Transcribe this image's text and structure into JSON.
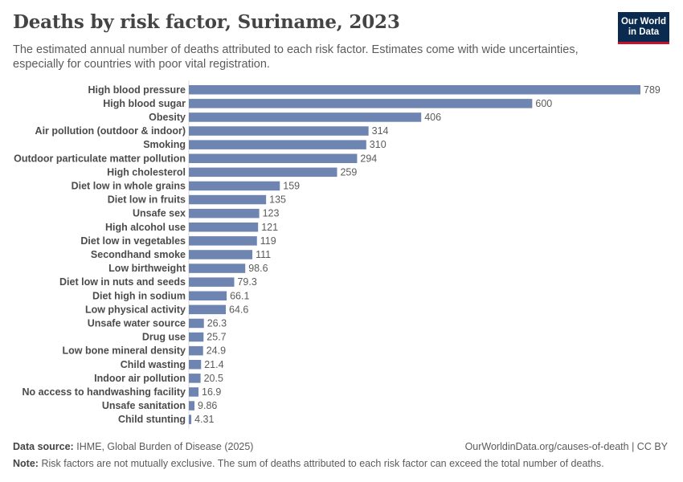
{
  "header": {
    "title": "Deaths by risk factor, Suriname, 2023",
    "subtitle": "The estimated annual number of deaths attributed to each risk factor. Estimates come with wide uncertainties, especially for countries with poor vital registration."
  },
  "logo": {
    "line1": "Our World",
    "line2": "in Data",
    "bg_color": "#0b2a4f",
    "accent_color": "#c8102e"
  },
  "chart_data": {
    "type": "bar",
    "orientation": "horizontal",
    "title": "Deaths by risk factor, Suriname, 2023",
    "bar_color": "#6e84b1",
    "categories": [
      "High blood pressure",
      "High blood sugar",
      "Obesity",
      "Air pollution (outdoor & indoor)",
      "Smoking",
      "Outdoor particulate matter pollution",
      "High cholesterol",
      "Diet low in whole grains",
      "Diet low in fruits",
      "Unsafe sex",
      "High alcohol use",
      "Diet low in vegetables",
      "Secondhand smoke",
      "Low birthweight",
      "Diet low in nuts and seeds",
      "Diet high in sodium",
      "Low physical activity",
      "Unsafe water source",
      "Drug use",
      "Low bone mineral density",
      "Child wasting",
      "Indoor air pollution",
      "No access to handwashing facility",
      "Unsafe sanitation",
      "Child stunting"
    ],
    "values": [
      789,
      600,
      406,
      314,
      310,
      294,
      259,
      159,
      135,
      123,
      121,
      119,
      111,
      98.6,
      79.3,
      66.1,
      64.6,
      26.3,
      25.7,
      24.9,
      21.4,
      20.5,
      16.9,
      9.86,
      4.31
    ],
    "value_labels": [
      "789",
      "600",
      "406",
      "314",
      "310",
      "294",
      "259",
      "159",
      "135",
      "123",
      "121",
      "119",
      "111",
      "98.6",
      "79.3",
      "66.1",
      "64.6",
      "26.3",
      "25.7",
      "24.9",
      "21.4",
      "20.5",
      "16.9",
      "9.86",
      "4.31"
    ],
    "xlim": [
      0,
      789
    ]
  },
  "footer": {
    "source_label": "Data source:",
    "source_text": "IHME, Global Burden of Disease (2025)",
    "url_text": "OurWorldinData.org/causes-of-death | CC BY",
    "note_label": "Note:",
    "note_text": "Risk factors are not mutually exclusive. The sum of deaths attributed to each risk factor can exceed the total number of deaths."
  }
}
